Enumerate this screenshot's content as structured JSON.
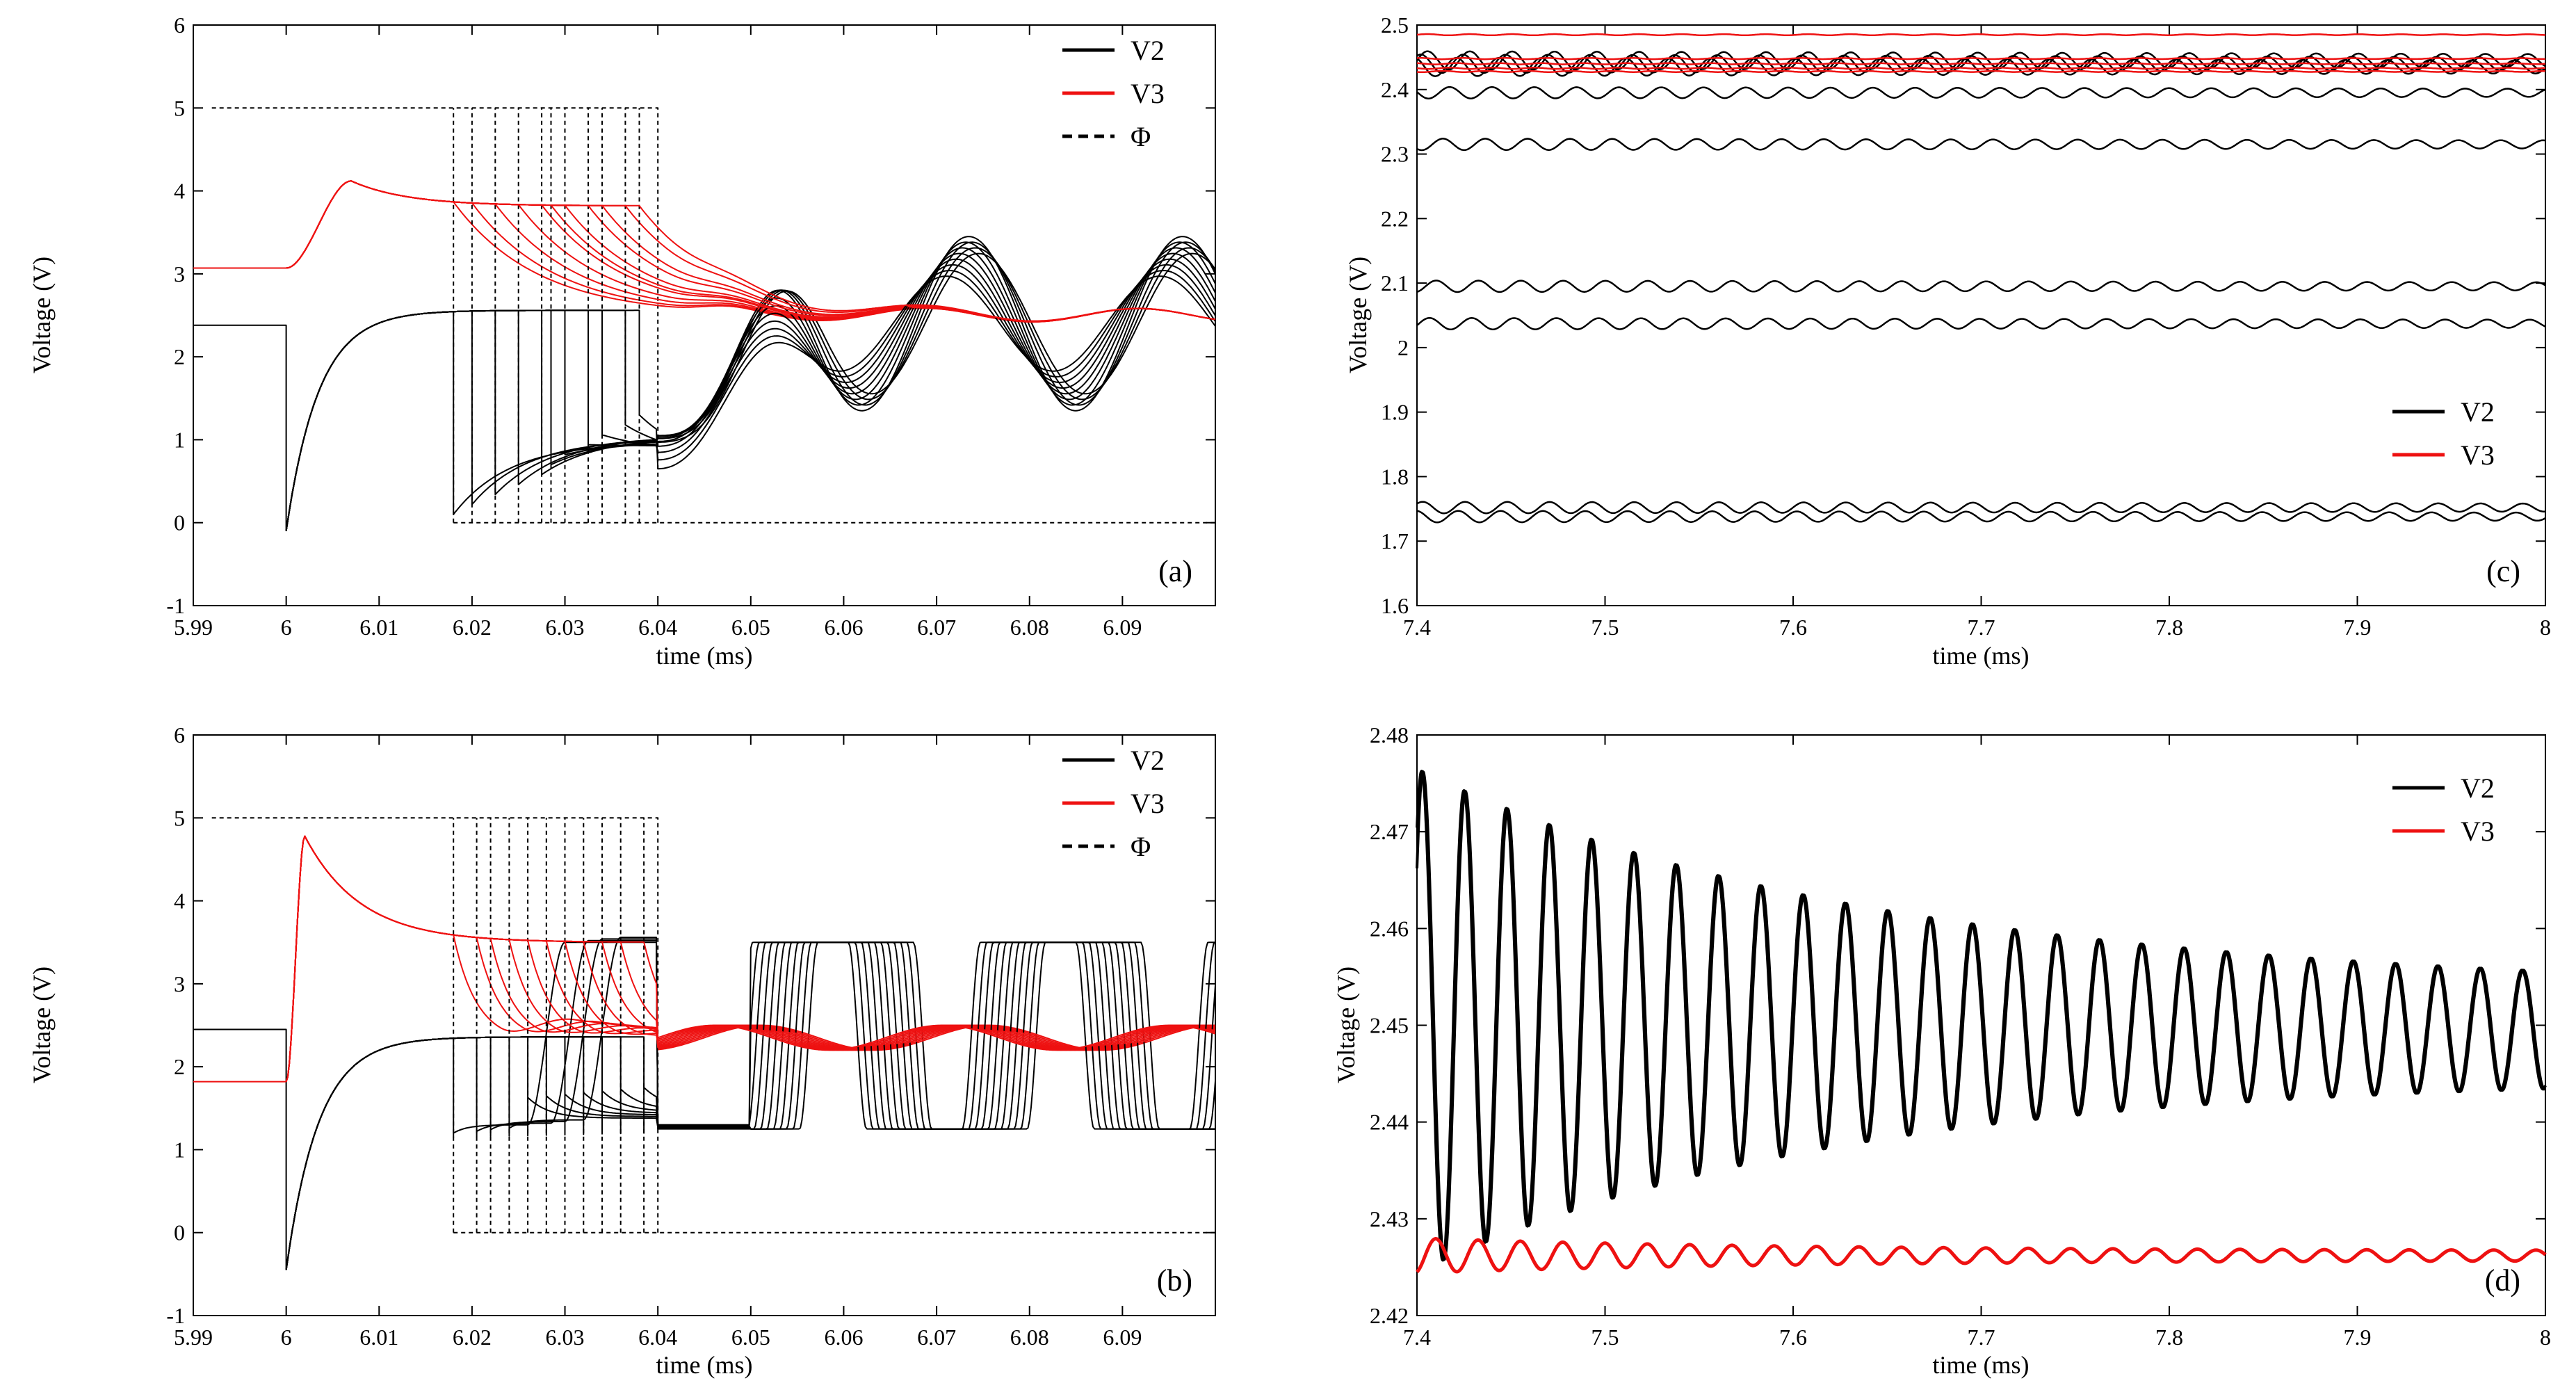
{
  "colors": {
    "v2": "#000000",
    "v3": "#ee1111",
    "phi": "#000000",
    "axis": "#000000"
  },
  "chart_data": [
    {
      "panel": "a",
      "type": "line",
      "title": "",
      "panel_label": "(a)",
      "xlabel": "time (ms)",
      "ylabel": "Voltage (V)",
      "xlim": [
        5.99,
        6.1
      ],
      "ylim": [
        -1,
        6
      ],
      "xticks": [
        5.99,
        6,
        6.01,
        6.02,
        6.03,
        6.04,
        6.05,
        6.06,
        6.07,
        6.08,
        6.09
      ],
      "xtick_labels": [
        "5.99",
        "6",
        "6.01",
        "6.02",
        "6.03",
        "6.04",
        "6.05",
        "6.06",
        "6.07",
        "6.08",
        "6.09"
      ],
      "yticks": [
        -1,
        0,
        1,
        2,
        3,
        4,
        5,
        6
      ],
      "ytick_labels": [
        "-1",
        "0",
        "1",
        "2",
        "3",
        "4",
        "5",
        "6"
      ],
      "legend": {
        "position": "top-right",
        "entries": [
          {
            "label": "V2",
            "style": "solid",
            "color": "v2"
          },
          {
            "label": "V3",
            "style": "solid",
            "color": "v3"
          },
          {
            "label": "Φ",
            "style": "dashed",
            "color": "phi"
          }
        ]
      },
      "model": {
        "v2_pre": 2.38,
        "v3_pre": 3.07,
        "v2_dip": -0.1,
        "v3_peak": 4.12,
        "v3_peak_t": 6.007,
        "v2_charge_level": 2.56,
        "v3_charge_level": 3.82,
        "pulse_starts": [
          6.018,
          6.02,
          6.0225,
          6.025,
          6.0275,
          6.0285,
          6.03,
          6.0325,
          6.034,
          6.0365,
          6.038
        ],
        "pulse_end": 6.04,
        "phi_high": 5,
        "phi_low": 0,
        "osc_period": 0.023,
        "osc_center": 2.4,
        "osc_amp": 1.05,
        "v3_settle": 2.5,
        "mode": "sine"
      }
    },
    {
      "panel": "b",
      "type": "line",
      "title": "",
      "panel_label": "(b)",
      "xlabel": "time (ms)",
      "ylabel": "Voltage (V)",
      "xlim": [
        5.99,
        6.1
      ],
      "ylim": [
        -1,
        6
      ],
      "xticks": [
        5.99,
        6,
        6.01,
        6.02,
        6.03,
        6.04,
        6.05,
        6.06,
        6.07,
        6.08,
        6.09
      ],
      "xtick_labels": [
        "5.99",
        "6",
        "6.01",
        "6.02",
        "6.03",
        "6.04",
        "6.05",
        "6.06",
        "6.07",
        "6.08",
        "6.09"
      ],
      "yticks": [
        -1,
        0,
        1,
        2,
        3,
        4,
        5,
        6
      ],
      "ytick_labels": [
        "-1",
        "0",
        "1",
        "2",
        "3",
        "4",
        "5",
        "6"
      ],
      "legend": {
        "position": "top-right",
        "entries": [
          {
            "label": "V2",
            "style": "solid",
            "color": "v2"
          },
          {
            "label": "V3",
            "style": "solid",
            "color": "v3"
          },
          {
            "label": "Φ",
            "style": "dashed",
            "color": "phi"
          }
        ]
      },
      "model": {
        "v2_pre": 2.45,
        "v3_pre": 1.82,
        "v2_dip": -0.45,
        "v3_peak": 4.78,
        "v3_peak_t": 6.002,
        "v2_charge_level": 2.36,
        "v3_charge_level": 3.5,
        "pulse_starts": [
          6.018,
          6.0205,
          6.022,
          6.024,
          6.026,
          6.028,
          6.03,
          6.032,
          6.034,
          6.036,
          6.0385
        ],
        "pulse_end": 6.04,
        "phi_high": 5,
        "phi_low": 0,
        "osc_period": 0.0245,
        "osc_center": 2.37,
        "osc_amp": 1.12,
        "v3_settle": 2.45,
        "mode": "square"
      }
    },
    {
      "panel": "c",
      "type": "line",
      "title": "",
      "panel_label": "(c)",
      "xlabel": "time (ms)",
      "ylabel": "Voltage (V)",
      "xlim": [
        7.4,
        8.0
      ],
      "ylim": [
        1.6,
        2.5
      ],
      "xticks": [
        7.4,
        7.5,
        7.6,
        7.7,
        7.8,
        7.9,
        8.0
      ],
      "xtick_labels": [
        "7.4",
        "7.5",
        "7.6",
        "7.7",
        "7.8",
        "7.9",
        "8"
      ],
      "yticks": [
        1.6,
        1.7,
        1.8,
        1.9,
        2.0,
        2.1,
        2.2,
        2.3,
        2.4,
        2.5
      ],
      "ytick_labels": [
        "1.6",
        "1.7",
        "1.8",
        "1.9",
        "2",
        "2.1",
        "2.2",
        "2.3",
        "2.4",
        "2.5"
      ],
      "legend": {
        "position": "right",
        "entries": [
          {
            "label": "V2",
            "style": "solid",
            "color": "v2"
          },
          {
            "label": "V3",
            "style": "solid",
            "color": "v3"
          }
        ]
      },
      "series": [
        {
          "name": "V2",
          "levels": [
            2.445,
            2.44,
            2.435,
            2.395,
            2.315,
            2.095,
            2.037,
            1.752,
            1.738
          ],
          "amplitude": 0.009,
          "period": 0.0225
        },
        {
          "name": "V3",
          "levels": [
            2.485,
            2.448,
            2.44,
            2.433,
            2.428
          ],
          "amplitude": 0.001,
          "period": 0.0225
        }
      ]
    },
    {
      "panel": "d",
      "type": "line",
      "title": "",
      "panel_label": "(d)",
      "xlabel": "time (ms)",
      "ylabel": "Voltage (V)",
      "xlim": [
        7.4,
        8.0
      ],
      "ylim": [
        2.42,
        2.48
      ],
      "xticks": [
        7.4,
        7.5,
        7.6,
        7.7,
        7.8,
        7.9,
        8.0
      ],
      "xtick_labels": [
        "7.4",
        "7.5",
        "7.6",
        "7.7",
        "7.8",
        "7.9",
        "8"
      ],
      "yticks": [
        2.42,
        2.43,
        2.44,
        2.45,
        2.46,
        2.47,
        2.48
      ],
      "ytick_labels": [
        "2.42",
        "2.43",
        "2.44",
        "2.45",
        "2.46",
        "2.47",
        "2.48"
      ],
      "legend": {
        "position": "top-right",
        "entries": [
          {
            "label": "V2",
            "style": "solid",
            "color": "v2"
          },
          {
            "label": "V3",
            "style": "solid",
            "color": "v3"
          }
        ]
      },
      "series": [
        {
          "name": "V2",
          "center_start": 2.4505,
          "center_end": 2.4495,
          "amp_start": 0.026,
          "amp_end": 0.0045,
          "period": 0.0225,
          "t0": 7.4025
        },
        {
          "name": "V3",
          "center": 2.4262,
          "amp_start": 0.0018,
          "amp_end": 0.0005,
          "period": 0.0225
        }
      ]
    }
  ]
}
